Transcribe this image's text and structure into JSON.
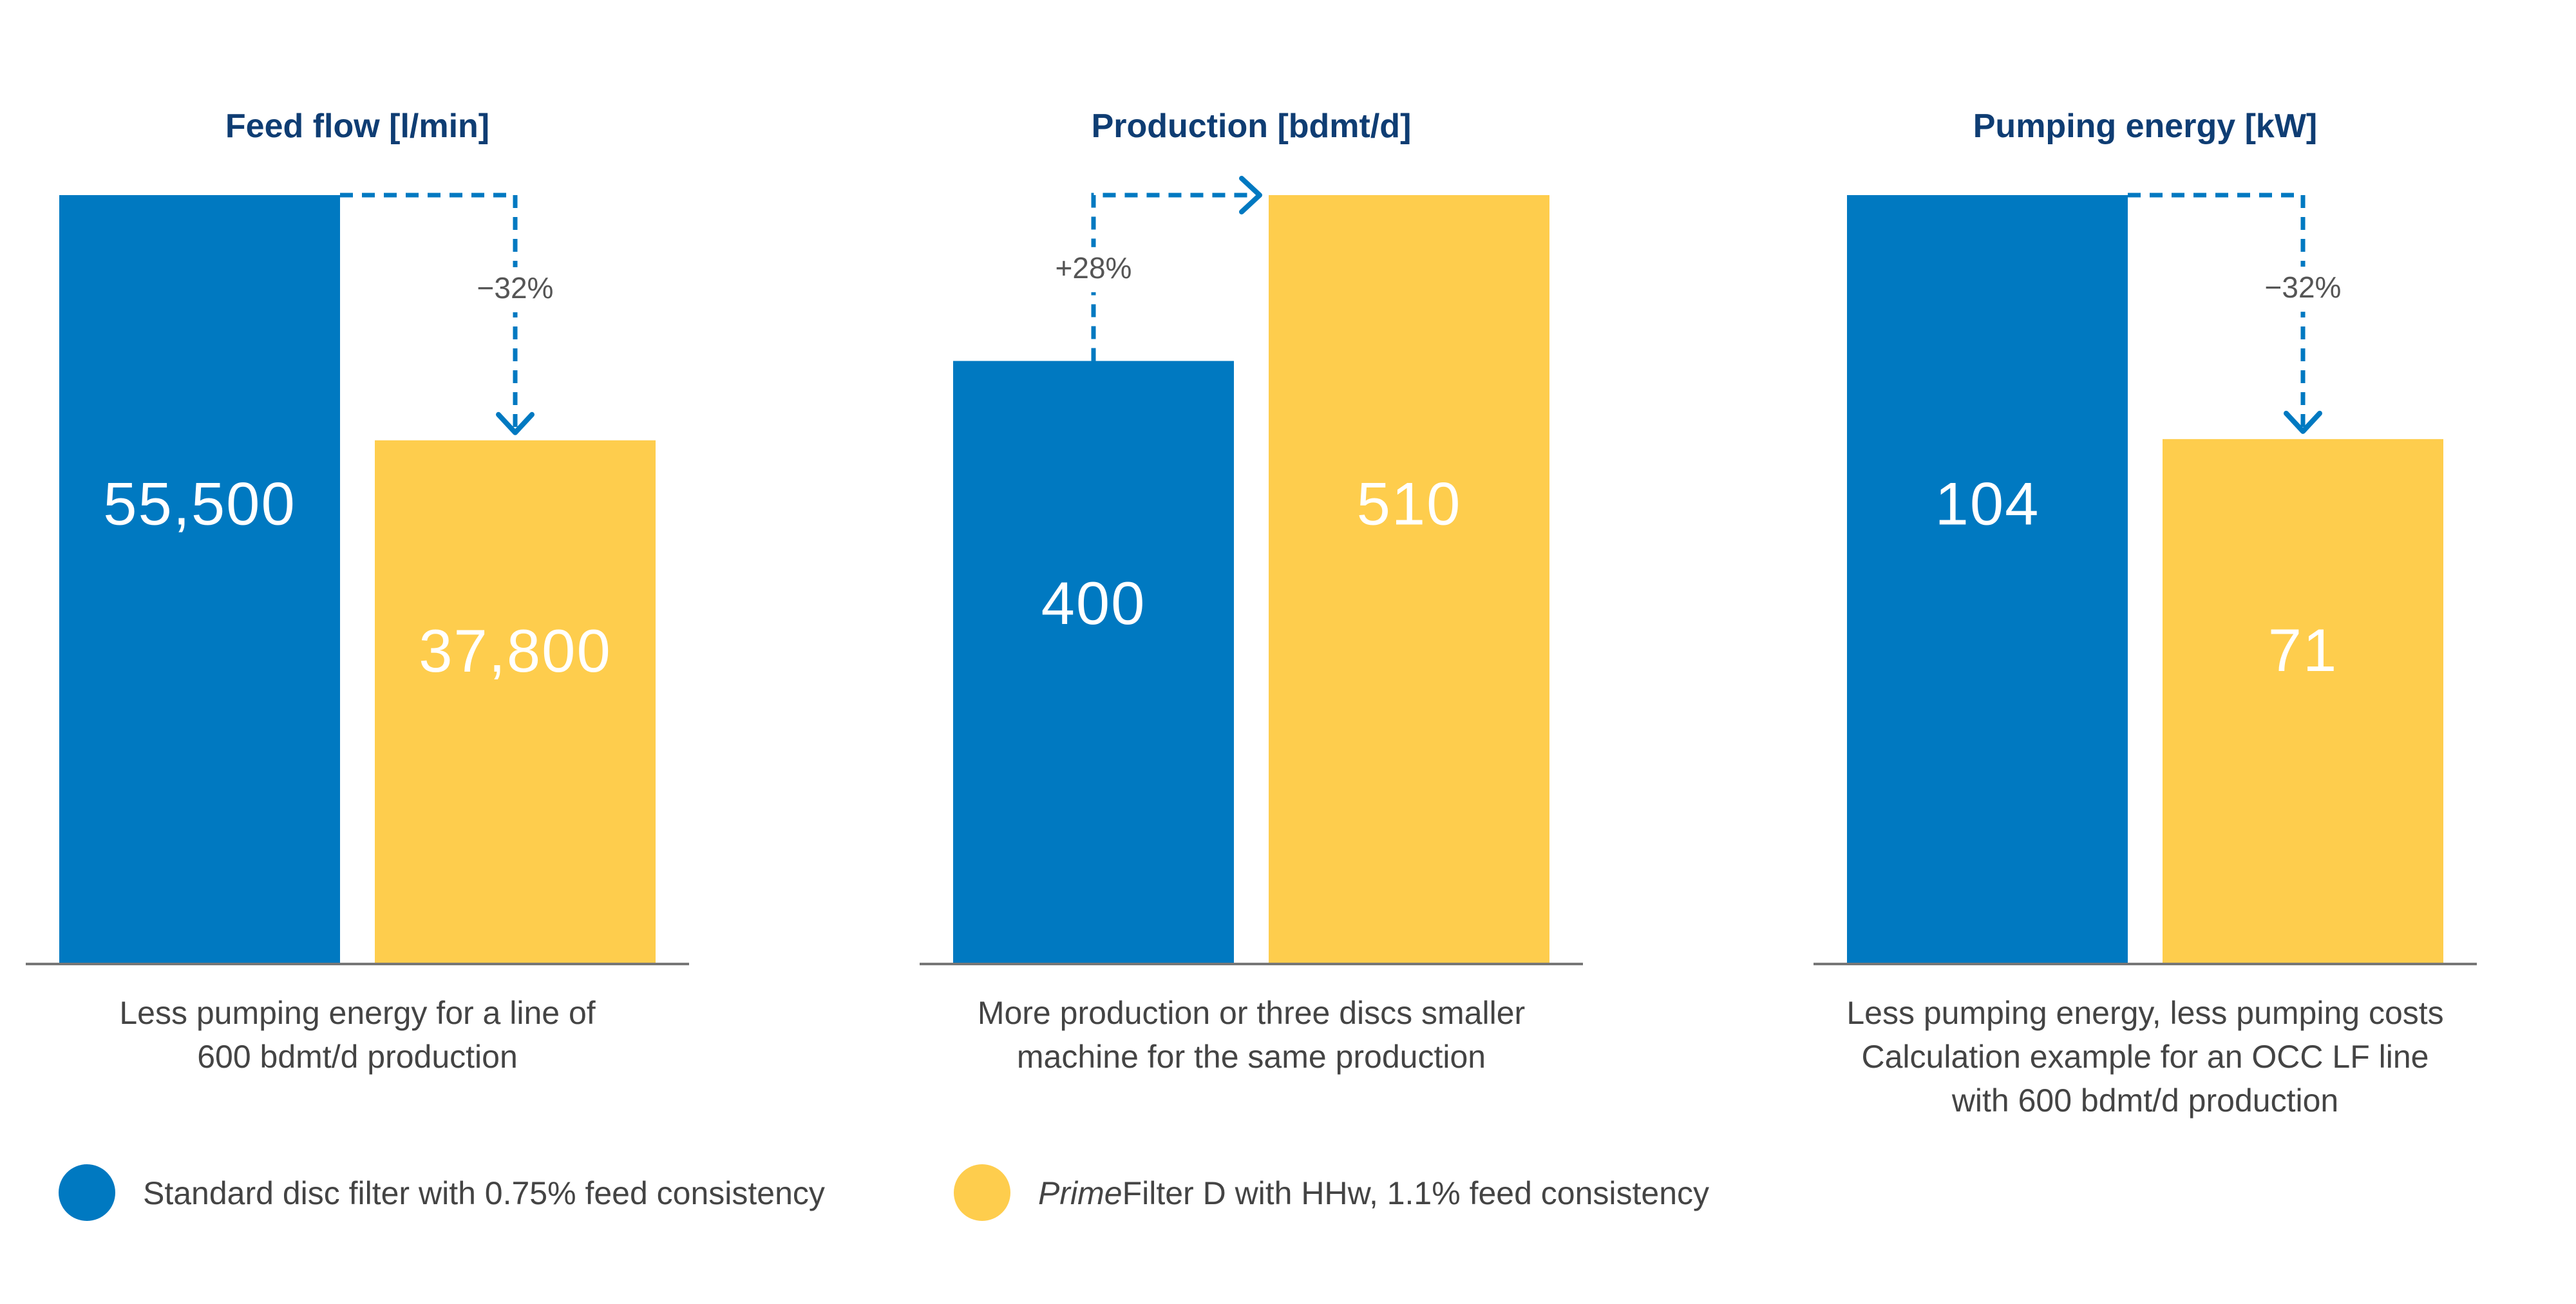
{
  "colors": {
    "standard": "#0079c1",
    "prime": "#fecd4d",
    "title": "#0f3d73",
    "arrow": "#0079c1",
    "axis": "#777777"
  },
  "legend": [
    {
      "color": "#0079c1",
      "label": "Standard disc filter with 0.75% feed consistency"
    },
    {
      "color": "#fecd4d",
      "label_italic": "Prime",
      "label": "Filter D with HHw, 1.1% feed consistency"
    }
  ],
  "chart_data": [
    {
      "type": "bar",
      "title": "Feed flow [l/min]",
      "categories": [
        "Standard disc filter",
        "PrimeFilter D"
      ],
      "values": [
        55500,
        37800
      ],
      "value_labels": [
        "55,500",
        "37,800"
      ],
      "change_label": "−32%",
      "caption": [
        "Less pumping energy for a line of",
        "600 bdmt/d production"
      ]
    },
    {
      "type": "bar",
      "title": "Production [bdmt/d]",
      "categories": [
        "Standard disc filter",
        "PrimeFilter D"
      ],
      "values": [
        400,
        510
      ],
      "value_labels": [
        "400",
        "510"
      ],
      "change_label": "+28%",
      "caption": [
        "More production or three discs smaller",
        "machine for the same production"
      ]
    },
    {
      "type": "bar",
      "title": "Pumping energy [kW]",
      "categories": [
        "Standard disc filter",
        "PrimeFilter D"
      ],
      "values": [
        104,
        71
      ],
      "value_labels": [
        "104",
        "71"
      ],
      "change_label": "−32%",
      "caption": [
        "Less pumping energy, less pumping costs",
        "Calculation example for an OCC LF line",
        "with 600 bdmt/d production"
      ]
    }
  ]
}
